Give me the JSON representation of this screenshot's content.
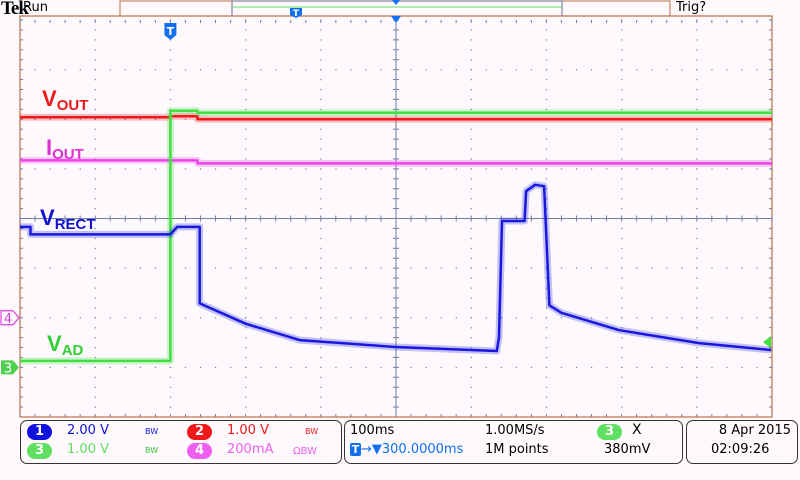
{
  "header": {
    "brand": "Tek",
    "state": "Run",
    "trigger_status": "Trig?"
  },
  "labels": {
    "vout": {
      "main": "V",
      "sub": "OUT"
    },
    "iout": {
      "main": "I",
      "sub": "OUT"
    },
    "vrect": {
      "main": "V",
      "sub": "RECT"
    },
    "vad": {
      "main": "V",
      "sub": "AD"
    }
  },
  "markers": {
    "trigger": "T",
    "ch4": "4",
    "ch3": "3"
  },
  "channels": [
    {
      "num": "1",
      "scale": "2.00 V",
      "bw": "BW",
      "color": "#1010e0"
    },
    {
      "num": "2",
      "scale": "1.00 V",
      "bw": "BW",
      "color": "#f01818"
    },
    {
      "num": "3",
      "scale": "1.00 V",
      "bw": "BW",
      "color": "#50e050"
    },
    {
      "num": "4",
      "scale": "200mA",
      "bw": "ΩBW",
      "color": "#f050f0"
    }
  ],
  "timebase": {
    "scale": "100ms",
    "sample_rate": "1.00MS/s",
    "position": "300.0000ms",
    "record_length": "1M points",
    "trigger_source": "3",
    "trigger_slope_icon": "falling-edge-icon",
    "trigger_slope": "Χ",
    "trigger_level": "380mV"
  },
  "datetime": {
    "date": "8 Apr  2015",
    "time": "02:09:26"
  },
  "chart_data": {
    "type": "line",
    "xlabel": "",
    "ylabel": "",
    "x_units": "ms from trigger",
    "y_units": "divisions from center",
    "xlim": [
      -200,
      800
    ],
    "ylim": [
      -4,
      4
    ],
    "grid": true,
    "divisions": {
      "x": 10,
      "y": 8
    },
    "series": [
      {
        "name": "VOUT",
        "channel": "2",
        "color": "#f01818",
        "x": [
          -200,
          0,
          0,
          36,
          36,
          800
        ],
        "y": [
          2.04,
          2.04,
          2.06,
          2.06,
          2.0,
          2.0
        ]
      },
      {
        "name": "IOUT",
        "channel": "4",
        "color": "#f040f0",
        "x": [
          -200,
          36,
          36,
          800
        ],
        "y": [
          1.17,
          1.17,
          1.11,
          1.11
        ]
      },
      {
        "name": "VAD",
        "channel": "3",
        "color": "#40e040",
        "x": [
          -200,
          0,
          0,
          36,
          36,
          800
        ],
        "y": [
          -2.87,
          -2.87,
          2.17,
          2.17,
          2.13,
          2.13
        ]
      },
      {
        "name": "VRECT",
        "channel": "1",
        "color": "#1818e0",
        "x": [
          -200,
          -186,
          -186,
          0,
          9,
          36,
          39,
          39,
          100,
          172,
          299,
          434,
          437,
          441,
          471,
          473,
          485,
          497,
          504,
          520,
          597,
          703,
          799
        ],
        "y": [
          -0.17,
          -0.17,
          -0.32,
          -0.32,
          -0.17,
          -0.17,
          -0.17,
          -1.71,
          -2.12,
          -2.45,
          -2.59,
          -2.67,
          -2.39,
          -0.05,
          -0.05,
          0.55,
          0.68,
          0.65,
          -1.75,
          -1.9,
          -2.25,
          -2.51,
          -2.65
        ]
      }
    ]
  }
}
